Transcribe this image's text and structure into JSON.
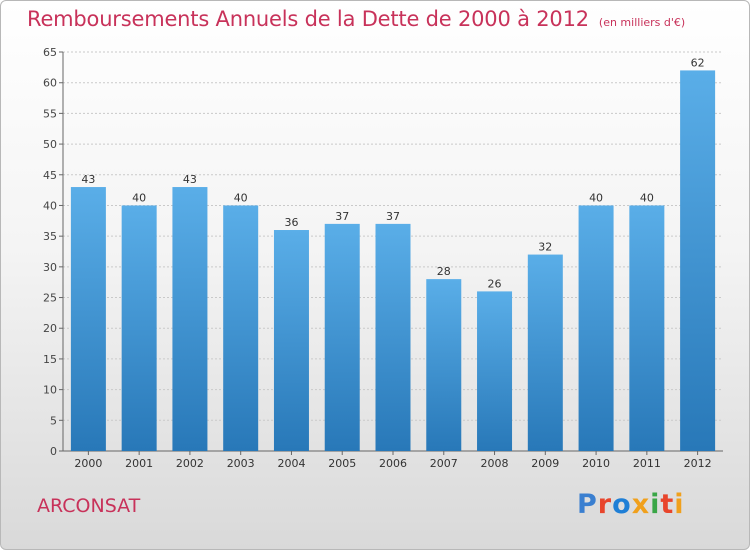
{
  "header": {
    "title": "Remboursements Annuels de la Dette de 2000 à 2012",
    "subtitle": "(en milliers d'€)"
  },
  "footer": {
    "commune": "ARCONSAT",
    "brand": "Proxiti",
    "brand_colors": [
      "#3a7fd0",
      "#e8452c",
      "#1f7fd6",
      "#f0a01c",
      "#3aa647",
      "#e8452c",
      "#f0a01c"
    ]
  },
  "chart_data": {
    "type": "bar",
    "title": "Remboursements Annuels de la Dette de 2000 à 2012",
    "subtitle": "(en milliers d'€)",
    "categories": [
      "2000",
      "2001",
      "2002",
      "2003",
      "2004",
      "2005",
      "2006",
      "2007",
      "2008",
      "2009",
      "2010",
      "2011",
      "2012"
    ],
    "values": [
      43,
      40,
      43,
      40,
      36,
      37,
      37,
      28,
      26,
      32,
      40,
      40,
      62
    ],
    "data_labels": [
      "43",
      "40",
      "43",
      "40",
      "36",
      "37",
      "37",
      "28",
      "26",
      "32",
      "40",
      "40",
      "62"
    ],
    "ylim": [
      0,
      65
    ],
    "yticks": [
      0,
      5,
      10,
      15,
      20,
      25,
      30,
      35,
      40,
      45,
      50,
      55,
      60,
      65
    ],
    "xlabel": "",
    "ylabel": "",
    "grid": true,
    "bar_color_top": "#5aaee8",
    "bar_color_bottom": "#2878b8"
  }
}
